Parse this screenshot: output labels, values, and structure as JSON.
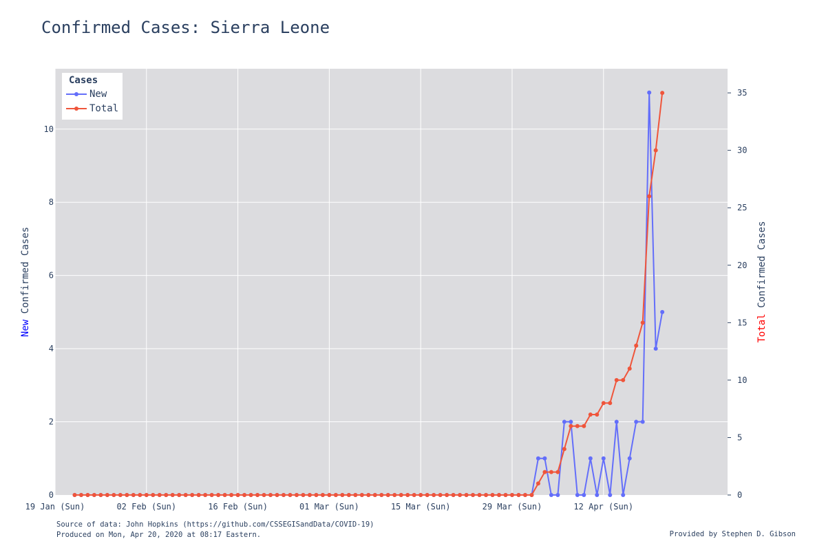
{
  "title": "Confirmed Cases: Sierra Leone",
  "footer": {
    "source": "Source of data: John Hopkins (https://github.com/CSSEGISandData/COVID-19)",
    "produced": "Produced on Mon, Apr 20, 2020 at 08:17 Eastern.",
    "provided": "Provided by Stephen D. Gibson"
  },
  "colors": {
    "new": "#636efa",
    "total": "#ef553b",
    "plot_bg": "#dcdcdf",
    "grid": "#ffffff",
    "text": "#2a3f5f",
    "new_word": "#0000ff",
    "total_word": "#ff0000"
  },
  "legend": {
    "title": "Cases",
    "new_label": "New",
    "total_label": "Total",
    "placement": "top-left"
  },
  "chart_data": {
    "type": "line",
    "title": "Confirmed Cases: Sierra Leone",
    "x_start": "2020-01-22",
    "x_range": [
      "2020-01-19",
      "2020-05-01"
    ],
    "x_ticks": [
      {
        "date": "2020-01-19",
        "label": "19 Jan (Sun)"
      },
      {
        "date": "2020-02-02",
        "label": "02 Feb (Sun)"
      },
      {
        "date": "2020-02-16",
        "label": "16 Feb (Sun)"
      },
      {
        "date": "2020-03-01",
        "label": "01 Mar (Sun)"
      },
      {
        "date": "2020-03-15",
        "label": "15 Mar (Sun)"
      },
      {
        "date": "2020-03-29",
        "label": "29 Mar (Sun)"
      },
      {
        "date": "2020-04-12",
        "label": "12 Apr (Sun)"
      }
    ],
    "y_left": {
      "label_highlight": "New",
      "label_rest": " Confirmed Cases",
      "range": [
        0,
        11.65
      ],
      "ticks": [
        0,
        2,
        4,
        6,
        8,
        10
      ]
    },
    "y_right": {
      "label_highlight": "Total",
      "label_rest": " Confirmed Cases",
      "range": [
        0,
        37.1
      ],
      "ticks": [
        0,
        5,
        10,
        15,
        20,
        25,
        30,
        35
      ]
    },
    "grid": true,
    "series": [
      {
        "name": "New",
        "axis": "left",
        "values": [
          0,
          0,
          0,
          0,
          0,
          0,
          0,
          0,
          0,
          0,
          0,
          0,
          0,
          0,
          0,
          0,
          0,
          0,
          0,
          0,
          0,
          0,
          0,
          0,
          0,
          0,
          0,
          0,
          0,
          0,
          0,
          0,
          0,
          0,
          0,
          0,
          0,
          0,
          0,
          0,
          0,
          0,
          0,
          0,
          0,
          0,
          0,
          0,
          0,
          0,
          0,
          0,
          0,
          0,
          0,
          0,
          0,
          0,
          0,
          0,
          0,
          0,
          0,
          0,
          0,
          0,
          0,
          0,
          0,
          0,
          0,
          1,
          1,
          0,
          0,
          2,
          2,
          0,
          0,
          1,
          0,
          1,
          0,
          2,
          0,
          1,
          2,
          2,
          11,
          4,
          5
        ]
      },
      {
        "name": "Total",
        "axis": "right",
        "values": [
          0,
          0,
          0,
          0,
          0,
          0,
          0,
          0,
          0,
          0,
          0,
          0,
          0,
          0,
          0,
          0,
          0,
          0,
          0,
          0,
          0,
          0,
          0,
          0,
          0,
          0,
          0,
          0,
          0,
          0,
          0,
          0,
          0,
          0,
          0,
          0,
          0,
          0,
          0,
          0,
          0,
          0,
          0,
          0,
          0,
          0,
          0,
          0,
          0,
          0,
          0,
          0,
          0,
          0,
          0,
          0,
          0,
          0,
          0,
          0,
          0,
          0,
          0,
          0,
          0,
          0,
          0,
          0,
          0,
          0,
          0,
          1,
          2,
          2,
          2,
          4,
          6,
          6,
          6,
          7,
          7,
          8,
          8,
          10,
          10,
          11,
          13,
          15,
          26,
          30,
          35
        ]
      }
    ]
  }
}
